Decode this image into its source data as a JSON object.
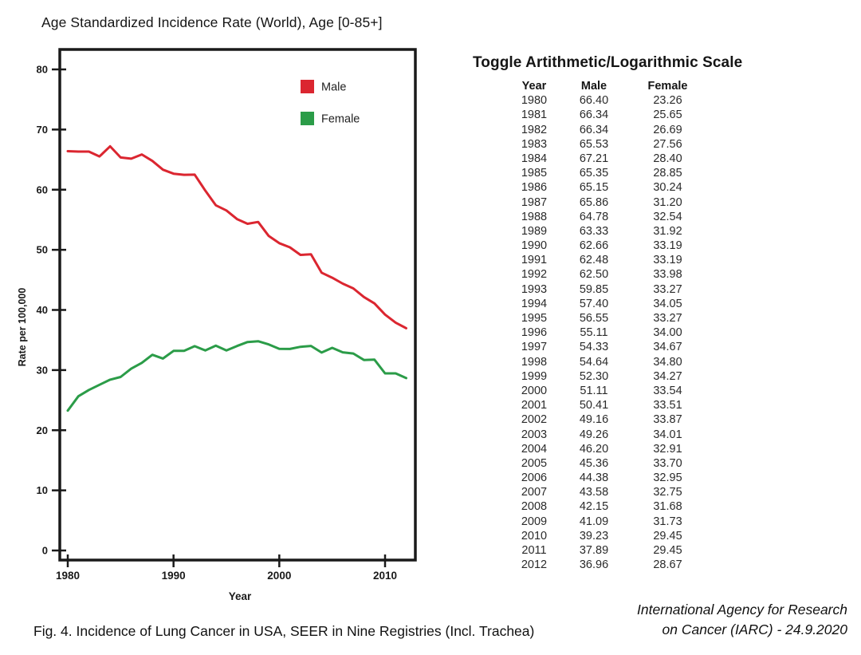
{
  "page": {
    "title": "Age Standardized Incidence Rate (World), Age [0-85+]",
    "caption": "Fig. 4. Incidence of Lung Cancer in USA, SEER in Nine Registries (Incl. Trachea)",
    "credit": {
      "line1": "International Agency for Research",
      "line2": "on Cancer (IARC) - 24.9.2020"
    }
  },
  "scale_toggle": {
    "label": "Toggle Artithmetic/Logarithmic Scale"
  },
  "table": {
    "columns": [
      "Year",
      "Male",
      "Female"
    ]
  },
  "chart_data": {
    "type": "line",
    "title": "Age Standardized Incidence Rate (World), Age [0-85+]",
    "xlabel": "Year",
    "ylabel": "Rate per 100,000",
    "x": [
      1980,
      1981,
      1982,
      1983,
      1984,
      1985,
      1986,
      1987,
      1988,
      1989,
      1990,
      1991,
      1992,
      1993,
      1994,
      1995,
      1996,
      1997,
      1998,
      1999,
      2000,
      2001,
      2002,
      2003,
      2004,
      2005,
      2006,
      2007,
      2008,
      2009,
      2010,
      2011,
      2012
    ],
    "series": [
      {
        "name": "Male",
        "color": "#db2630",
        "values": [
          66.4,
          66.34,
          66.34,
          65.53,
          67.21,
          65.35,
          65.15,
          65.86,
          64.78,
          63.33,
          62.66,
          62.48,
          62.5,
          59.85,
          57.4,
          56.55,
          55.11,
          54.33,
          54.64,
          52.3,
          51.11,
          50.41,
          49.16,
          49.26,
          46.2,
          45.36,
          44.38,
          43.58,
          42.15,
          41.09,
          39.23,
          37.89,
          36.96
        ]
      },
      {
        "name": "Female",
        "color": "#2b9c48",
        "values": [
          23.26,
          25.65,
          26.69,
          27.56,
          28.4,
          28.85,
          30.24,
          31.2,
          32.54,
          31.92,
          33.19,
          33.19,
          33.98,
          33.27,
          34.05,
          33.27,
          34.0,
          34.67,
          34.8,
          34.27,
          33.54,
          33.51,
          33.87,
          34.01,
          32.91,
          33.7,
          32.95,
          32.75,
          31.68,
          31.73,
          29.45,
          29.45,
          28.67
        ]
      }
    ],
    "xlim": [
      1979.2,
      2013
    ],
    "ylim": [
      0,
      80
    ],
    "yticks": [
      0,
      10,
      20,
      30,
      40,
      50,
      60,
      70,
      80
    ],
    "xticks": [
      1980,
      1990,
      2000,
      2010
    ],
    "grid": false,
    "legend_position": "top-right-inside",
    "axis_color": "#1a1a1a"
  }
}
